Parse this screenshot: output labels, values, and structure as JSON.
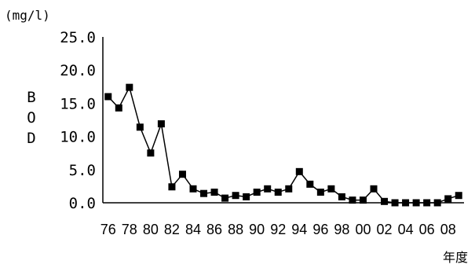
{
  "chart_data": {
    "type": "line",
    "unit_label": "(mg/l)",
    "ylabel": "BOD",
    "xlabel": "年度",
    "ylim": [
      0,
      25
    ],
    "y_ticks": [
      "0.0",
      "5.0",
      "10.0",
      "15.0",
      "20.0",
      "25.0"
    ],
    "x_tick_labels": [
      "76",
      "78",
      "80",
      "82",
      "84",
      "86",
      "88",
      "90",
      "92",
      "94",
      "96",
      "98",
      "00",
      "02",
      "04",
      "06",
      "08"
    ],
    "x": [
      "76",
      "77",
      "78",
      "79",
      "80",
      "81",
      "82",
      "83",
      "84",
      "85",
      "86",
      "87",
      "88",
      "89",
      "90",
      "91",
      "92",
      "93",
      "94",
      "95",
      "96",
      "97",
      "98",
      "99",
      "00",
      "01",
      "02",
      "03",
      "04",
      "05",
      "06",
      "07",
      "08",
      "09"
    ],
    "series": [
      {
        "values": [
          16.0,
          14.3,
          17.4,
          11.4,
          7.5,
          11.9,
          2.4,
          4.3,
          2.1,
          1.4,
          1.6,
          0.7,
          1.1,
          0.9,
          1.6,
          2.1,
          1.6,
          2.1,
          4.7,
          2.8,
          1.6,
          2.1,
          0.9,
          0.4,
          0.4,
          2.1,
          0.2,
          0.0,
          0.0,
          0.0,
          0.0,
          0.0,
          0.6,
          1.1
        ],
        "color": "#000000"
      }
    ]
  }
}
